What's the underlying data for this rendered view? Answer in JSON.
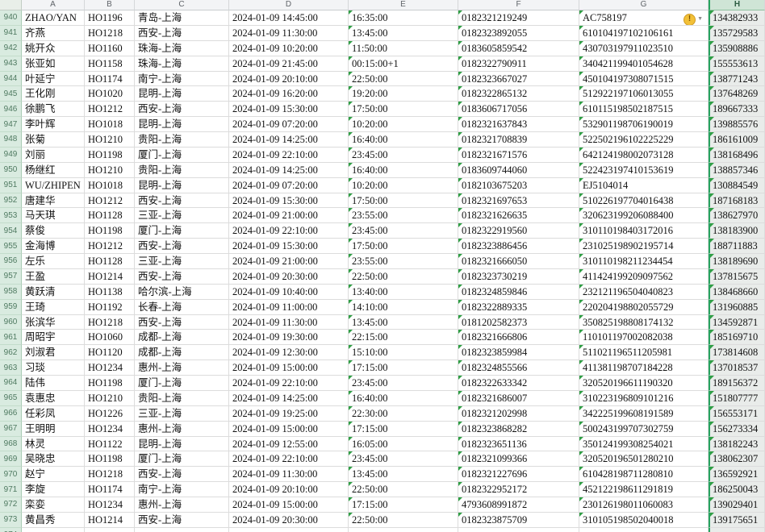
{
  "sheet": {
    "columns": [
      "A",
      "B",
      "C",
      "D",
      "E",
      "F",
      "G",
      "H"
    ],
    "selected_column": "H",
    "column_keys": [
      "name",
      "flight",
      "route",
      "depart",
      "arrive",
      "ticket",
      "idno",
      "phone"
    ],
    "text_indicator_columns": [
      "arrive",
      "ticket",
      "idno",
      "phone"
    ],
    "colors": {
      "selection_accent": "#27a35f",
      "row_header_bg": "#d9ebe0",
      "selected_cell_bg": "#e9ecea",
      "warning_icon": "#f2c037",
      "text_indicator": "#2f9e44"
    },
    "icons": {
      "warning": "!",
      "dropdown": "▼"
    },
    "rows": [
      {
        "n": "940",
        "name": "ZHAO/YAN",
        "flight": "HO1196",
        "route": "青岛-上海",
        "depart": "2024-01-09 14:45:00",
        "arrive": "16:35:00",
        "ticket": "0182321219249",
        "idno": "AC758197",
        "phone": "134382933",
        "warning": true
      },
      {
        "n": "941",
        "name": "齐燕",
        "flight": "HO1218",
        "route": "西安-上海",
        "depart": "2024-01-09 11:30:00",
        "arrive": "13:45:00",
        "ticket": "0182323892055",
        "idno": "610104197102106161",
        "phone": "135729583"
      },
      {
        "n": "942",
        "name": "姚开众",
        "flight": "HO1160",
        "route": "珠海-上海",
        "depart": "2024-01-09 10:20:00",
        "arrive": "11:50:00",
        "ticket": "0183605859542",
        "idno": "430703197911023510",
        "phone": "135908886"
      },
      {
        "n": "943",
        "name": "张亚如",
        "flight": "HO1158",
        "route": "珠海-上海",
        "depart": "2024-01-09 21:45:00",
        "arrive": "00:15:00+1",
        "ticket": "0182322790911",
        "idno": "340421199401054628",
        "phone": "155553613"
      },
      {
        "n": "944",
        "name": "叶延宁",
        "flight": "HO1174",
        "route": "南宁-上海",
        "depart": "2024-01-09 20:10:00",
        "arrive": "22:50:00",
        "ticket": "0182323667027",
        "idno": "450104197308071515",
        "phone": "138771243"
      },
      {
        "n": "945",
        "name": "王化刚",
        "flight": "HO1020",
        "route": "昆明-上海",
        "depart": "2024-01-09 16:20:00",
        "arrive": "19:20:00",
        "ticket": "0182322865132",
        "idno": "512922197106013055",
        "phone": "137648269"
      },
      {
        "n": "946",
        "name": "徐鹏飞",
        "flight": "HO1212",
        "route": "西安-上海",
        "depart": "2024-01-09 15:30:00",
        "arrive": "17:50:00",
        "ticket": "0183606717056",
        "idno": "610115198502187515",
        "phone": "189667333"
      },
      {
        "n": "947",
        "name": "李叶辉",
        "flight": "HO1018",
        "route": "昆明-上海",
        "depart": "2024-01-09 07:20:00",
        "arrive": "10:20:00",
        "ticket": "0182321637843",
        "idno": "532901198706190019",
        "phone": "139885576"
      },
      {
        "n": "948",
        "name": "张菊",
        "flight": "HO1210",
        "route": "贵阳-上海",
        "depart": "2024-01-09 14:25:00",
        "arrive": "16:40:00",
        "ticket": "0182321708839",
        "idno": "522502196102225229",
        "phone": "186161009"
      },
      {
        "n": "949",
        "name": "刘丽",
        "flight": "HO1198",
        "route": "厦门-上海",
        "depart": "2024-01-09 22:10:00",
        "arrive": "23:45:00",
        "ticket": "0182321671576",
        "idno": "642124198002073128",
        "phone": "138168496"
      },
      {
        "n": "950",
        "name": "杨继红",
        "flight": "HO1210",
        "route": "贵阳-上海",
        "depart": "2024-01-09 14:25:00",
        "arrive": "16:40:00",
        "ticket": "0183609744060",
        "idno": "522423197410153619",
        "phone": "138857346"
      },
      {
        "n": "951",
        "name": "WU/ZHIPEN",
        "flight": "HO1018",
        "route": "昆明-上海",
        "depart": "2024-01-09 07:20:00",
        "arrive": "10:20:00",
        "ticket": "0182103675203",
        "idno": "EJ5104014",
        "phone": "130884549"
      },
      {
        "n": "952",
        "name": "唐建华",
        "flight": "HO1212",
        "route": "西安-上海",
        "depart": "2024-01-09 15:30:00",
        "arrive": "17:50:00",
        "ticket": "0182321697653",
        "idno": "510226197704016438",
        "phone": "187168183"
      },
      {
        "n": "953",
        "name": "马天琪",
        "flight": "HO1128",
        "route": "三亚-上海",
        "depart": "2024-01-09 21:00:00",
        "arrive": "23:55:00",
        "ticket": "0182321626635",
        "idno": "320623199206088400",
        "phone": "138627970"
      },
      {
        "n": "954",
        "name": "蔡俊",
        "flight": "HO1198",
        "route": "厦门-上海",
        "depart": "2024-01-09 22:10:00",
        "arrive": "23:45:00",
        "ticket": "0182322919560",
        "idno": "310110198403172016",
        "phone": "138183900"
      },
      {
        "n": "955",
        "name": "金海博",
        "flight": "HO1212",
        "route": "西安-上海",
        "depart": "2024-01-09 15:30:00",
        "arrive": "17:50:00",
        "ticket": "0182323886456",
        "idno": "231025198902195714",
        "phone": "188711883"
      },
      {
        "n": "956",
        "name": "左乐",
        "flight": "HO1128",
        "route": "三亚-上海",
        "depart": "2024-01-09 21:00:00",
        "arrive": "23:55:00",
        "ticket": "0182321666050",
        "idno": "310110198211234454",
        "phone": "138189690"
      },
      {
        "n": "957",
        "name": "王盈",
        "flight": "HO1214",
        "route": "西安-上海",
        "depart": "2024-01-09 20:30:00",
        "arrive": "22:50:00",
        "ticket": "0182323730219",
        "idno": "411424199209097562",
        "phone": "137815675"
      },
      {
        "n": "958",
        "name": "黄跃清",
        "flight": "HO1138",
        "route": "哈尔滨-上海",
        "depart": "2024-01-09 10:40:00",
        "arrive": "13:40:00",
        "ticket": "0182324859846",
        "idno": "232121196504040823",
        "phone": "138468660"
      },
      {
        "n": "959",
        "name": "王琦",
        "flight": "HO1192",
        "route": "长春-上海",
        "depart": "2024-01-09 11:00:00",
        "arrive": "14:10:00",
        "ticket": "0182322889335",
        "idno": "220204198802055729",
        "phone": "131960885"
      },
      {
        "n": "960",
        "name": "张滨华",
        "flight": "HO1218",
        "route": "西安-上海",
        "depart": "2024-01-09 11:30:00",
        "arrive": "13:45:00",
        "ticket": "0181202582373",
        "idno": "350825198808174132",
        "phone": "134592871"
      },
      {
        "n": "961",
        "name": "周昭宇",
        "flight": "HO1060",
        "route": "成都-上海",
        "depart": "2024-01-09 19:30:00",
        "arrive": "22:15:00",
        "ticket": "0182321666806",
        "idno": "110101197002082038",
        "phone": "185169710"
      },
      {
        "n": "962",
        "name": "刘淑君",
        "flight": "HO1120",
        "route": "成都-上海",
        "depart": "2024-01-09 12:30:00",
        "arrive": "15:10:00",
        "ticket": "0182323859984",
        "idno": "511021196511205981",
        "phone": "173814608"
      },
      {
        "n": "963",
        "name": "习琰",
        "flight": "HO1234",
        "route": "惠州-上海",
        "depart": "2024-01-09 15:00:00",
        "arrive": "17:15:00",
        "ticket": "0182324855566",
        "idno": "411381198707184228",
        "phone": "137018537"
      },
      {
        "n": "964",
        "name": "陆伟",
        "flight": "HO1198",
        "route": "厦门-上海",
        "depart": "2024-01-09 22:10:00",
        "arrive": "23:45:00",
        "ticket": "0182322633342",
        "idno": "320520196611190320",
        "phone": "189156372"
      },
      {
        "n": "965",
        "name": "袁惠忠",
        "flight": "HO1210",
        "route": "贵阳-上海",
        "depart": "2024-01-09 14:25:00",
        "arrive": "16:40:00",
        "ticket": "0182321686007",
        "idno": "310223196809101216",
        "phone": "151807777"
      },
      {
        "n": "966",
        "name": "任彩凤",
        "flight": "HO1226",
        "route": "三亚-上海",
        "depart": "2024-01-09 19:25:00",
        "arrive": "22:30:00",
        "ticket": "0182321202998",
        "idno": "342225199608191589",
        "phone": "156553171"
      },
      {
        "n": "967",
        "name": "王明明",
        "flight": "HO1234",
        "route": "惠州-上海",
        "depart": "2024-01-09 15:00:00",
        "arrive": "17:15:00",
        "ticket": "0182323868282",
        "idno": "500243199707302759",
        "phone": "156273334"
      },
      {
        "n": "968",
        "name": "林灵",
        "flight": "HO1122",
        "route": "昆明-上海",
        "depart": "2024-01-09 12:55:00",
        "arrive": "16:05:00",
        "ticket": "0182323651136",
        "idno": "350124199308254021",
        "phone": "138182243"
      },
      {
        "n": "969",
        "name": "吴晓忠",
        "flight": "HO1198",
        "route": "厦门-上海",
        "depart": "2024-01-09 22:10:00",
        "arrive": "23:45:00",
        "ticket": "0182321099366",
        "idno": "320520196501280210",
        "phone": "138062307"
      },
      {
        "n": "970",
        "name": "赵宁",
        "flight": "HO1218",
        "route": "西安-上海",
        "depart": "2024-01-09 11:30:00",
        "arrive": "13:45:00",
        "ticket": "0182321227696",
        "idno": "610428198711280810",
        "phone": "136592921"
      },
      {
        "n": "971",
        "name": "李旋",
        "flight": "HO1174",
        "route": "南宁-上海",
        "depart": "2024-01-09 20:10:00",
        "arrive": "22:50:00",
        "ticket": "0182322952172",
        "idno": "452122198611291819",
        "phone": "186250043"
      },
      {
        "n": "972",
        "name": "栾娈",
        "flight": "HO1234",
        "route": "惠州-上海",
        "depart": "2024-01-09 15:00:00",
        "arrive": "17:15:00",
        "ticket": "4793608991872",
        "idno": "230126198011060083",
        "phone": "139029401"
      },
      {
        "n": "973",
        "name": "黄昌秀",
        "flight": "HO1214",
        "route": "西安-上海",
        "depart": "2024-01-09 20:30:00",
        "arrive": "22:50:00",
        "ticket": "0182323875709",
        "idno": "310105198502040018",
        "phone": "139175651"
      },
      {
        "n": "974",
        "name": "",
        "flight": "",
        "route": "",
        "depart": "",
        "arrive": "",
        "ticket": "",
        "idno": "",
        "phone": ""
      }
    ]
  }
}
